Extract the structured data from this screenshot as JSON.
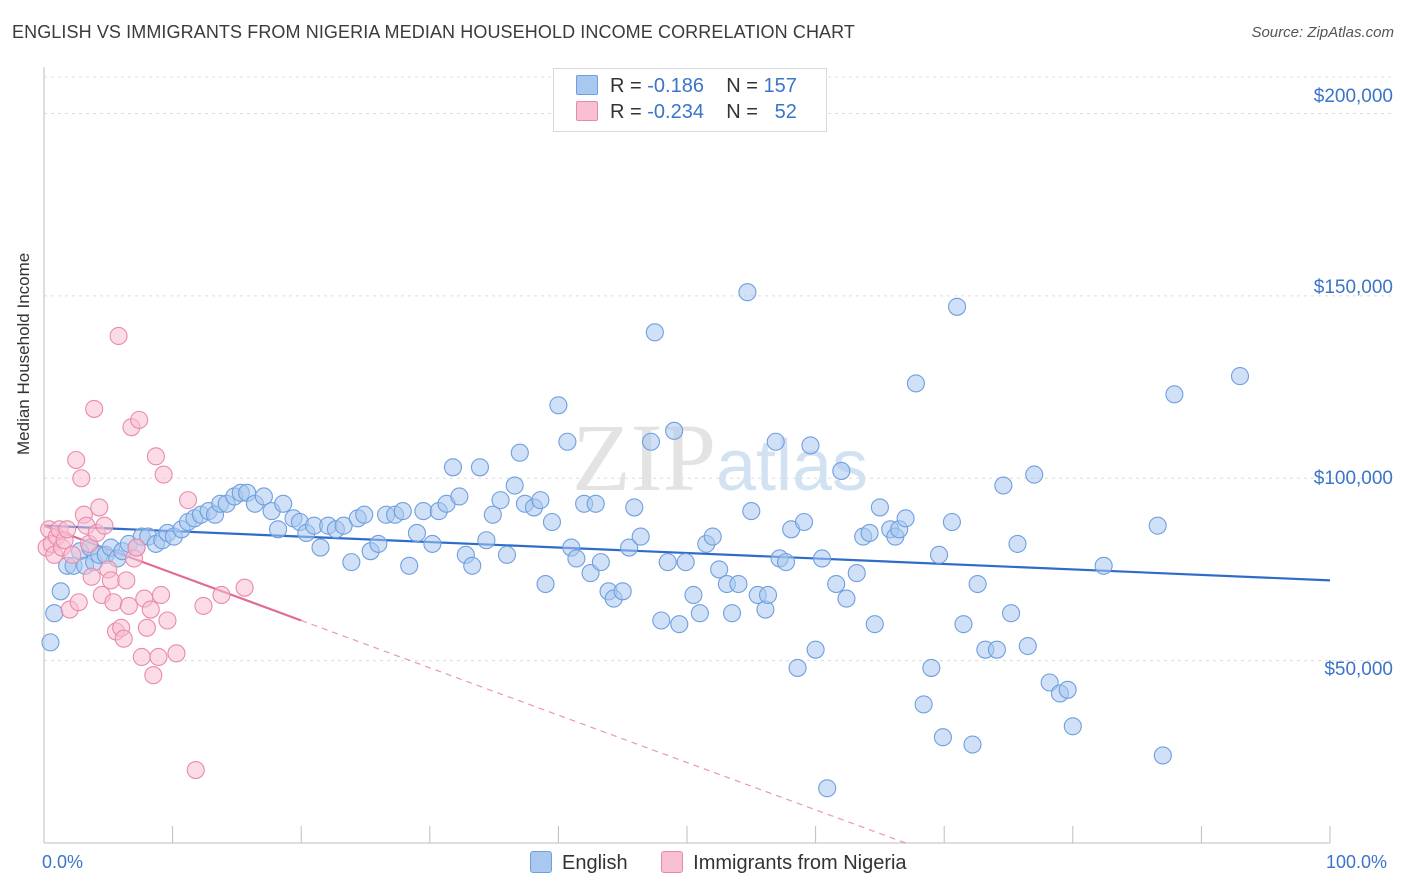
{
  "title": "ENGLISH VS IMMIGRANTS FROM NIGERIA MEDIAN HOUSEHOLD INCOME CORRELATION CHART",
  "source": "Source: ZipAtlas.com",
  "watermark": "ZIPatlas",
  "legend_top": [
    {
      "label_r": "R = ",
      "r": "-0.186",
      "label_n": "N = ",
      "n": "157",
      "color": "#a9c8f0",
      "border": "#6f9fdf"
    },
    {
      "label_r": "R = ",
      "r": "-0.234",
      "label_n": "N = ",
      "n": "52",
      "color": "#f7bfd1",
      "border": "#ea8aab"
    }
  ],
  "legend_bottom": [
    {
      "label": "English",
      "color": "#a9c8f0",
      "border": "#6f9fdf"
    },
    {
      "label": "Immigrants from Nigeria",
      "color": "#f7bfd1",
      "border": "#ea8aab"
    }
  ],
  "chart_data": {
    "type": "scatter",
    "title": "ENGLISH VS IMMIGRANTS FROM NIGERIA MEDIAN HOUSEHOLD INCOME CORRELATION CHART",
    "xlabel": "",
    "ylabel": "Median Household Income",
    "x_tick_labels": [
      "0.0%",
      "100.0%"
    ],
    "y_tick_labels": [
      "$200,000",
      "$150,000",
      "$100,000",
      "$50,000"
    ],
    "y_ticks": [
      200000,
      150000,
      100000,
      50000
    ],
    "xlim": [
      0,
      100
    ],
    "ylim": [
      0,
      210000
    ],
    "grid": true,
    "legend_position": "top-center",
    "series": [
      {
        "name": "English",
        "color": "#6f9fdf",
        "fill": "#a9c8f0",
        "trend": {
          "x": [
            0,
            100
          ],
          "y": [
            87000,
            72000
          ],
          "color": "#2f6cc9"
        },
        "points": [
          [
            0.5,
            55
          ],
          [
            0.8,
            63
          ],
          [
            1.3,
            69
          ],
          [
            1.8,
            76
          ],
          [
            2.3,
            76
          ],
          [
            2.8,
            80
          ],
          [
            3.2,
            76
          ],
          [
            3.6,
            81
          ],
          [
            3.9,
            77
          ],
          [
            4.3,
            79
          ],
          [
            4.8,
            79
          ],
          [
            5.2,
            81
          ],
          [
            5.7,
            78
          ],
          [
            6.1,
            80
          ],
          [
            6.6,
            82
          ],
          [
            7.2,
            81
          ],
          [
            7.6,
            84
          ],
          [
            8.1,
            84
          ],
          [
            8.7,
            82
          ],
          [
            9.2,
            83
          ],
          [
            9.6,
            85
          ],
          [
            10.1,
            84
          ],
          [
            10.7,
            86
          ],
          [
            11.2,
            88
          ],
          [
            11.7,
            89
          ],
          [
            12.2,
            90
          ],
          [
            12.8,
            91
          ],
          [
            13.3,
            90
          ],
          [
            13.7,
            93
          ],
          [
            14.2,
            93
          ],
          [
            14.8,
            95
          ],
          [
            15.3,
            96
          ],
          [
            15.8,
            96
          ],
          [
            16.4,
            93
          ],
          [
            17.1,
            95
          ],
          [
            17.7,
            91
          ],
          [
            18.2,
            86
          ],
          [
            18.6,
            93
          ],
          [
            19.4,
            89
          ],
          [
            19.9,
            88
          ],
          [
            20.4,
            85
          ],
          [
            21.0,
            87
          ],
          [
            21.5,
            81
          ],
          [
            22.1,
            87
          ],
          [
            22.7,
            86
          ],
          [
            23.3,
            87
          ],
          [
            23.9,
            77
          ],
          [
            24.4,
            89
          ],
          [
            24.9,
            90
          ],
          [
            25.4,
            80
          ],
          [
            26.0,
            82
          ],
          [
            26.6,
            90
          ],
          [
            27.3,
            90
          ],
          [
            27.9,
            91
          ],
          [
            28.4,
            76
          ],
          [
            29.0,
            85
          ],
          [
            29.5,
            91
          ],
          [
            30.2,
            82
          ],
          [
            30.7,
            91
          ],
          [
            31.3,
            93
          ],
          [
            31.8,
            103
          ],
          [
            32.3,
            95
          ],
          [
            32.8,
            79
          ],
          [
            33.3,
            76
          ],
          [
            33.9,
            103
          ],
          [
            34.4,
            83
          ],
          [
            34.9,
            90
          ],
          [
            35.5,
            94
          ],
          [
            36.0,
            79
          ],
          [
            36.6,
            98
          ],
          [
            37.0,
            107
          ],
          [
            37.4,
            93
          ],
          [
            38.1,
            92
          ],
          [
            38.6,
            94
          ],
          [
            39.0,
            71
          ],
          [
            39.5,
            88
          ],
          [
            40.0,
            120
          ],
          [
            40.7,
            110
          ],
          [
            41.0,
            81
          ],
          [
            41.4,
            78
          ],
          [
            42.0,
            93
          ],
          [
            42.5,
            74
          ],
          [
            42.9,
            93
          ],
          [
            43.3,
            77
          ],
          [
            43.9,
            69
          ],
          [
            44.3,
            67
          ],
          [
            45.0,
            69
          ],
          [
            45.5,
            81
          ],
          [
            45.9,
            92
          ],
          [
            46.4,
            84
          ],
          [
            47.2,
            110
          ],
          [
            47.5,
            140
          ],
          [
            48.0,
            61
          ],
          [
            48.5,
            77
          ],
          [
            49.0,
            113
          ],
          [
            49.4,
            60
          ],
          [
            49.9,
            77
          ],
          [
            50.5,
            68
          ],
          [
            51.0,
            63
          ],
          [
            51.5,
            82
          ],
          [
            52.0,
            84
          ],
          [
            52.5,
            75
          ],
          [
            53.1,
            71
          ],
          [
            53.5,
            63
          ],
          [
            54.0,
            71
          ],
          [
            54.7,
            151
          ],
          [
            55.0,
            91
          ],
          [
            55.5,
            68
          ],
          [
            56.1,
            64
          ],
          [
            56.3,
            68
          ],
          [
            56.9,
            110
          ],
          [
            57.2,
            78
          ],
          [
            57.7,
            77
          ],
          [
            58.1,
            86
          ],
          [
            58.6,
            48
          ],
          [
            59.1,
            88
          ],
          [
            59.6,
            109
          ],
          [
            60.0,
            53
          ],
          [
            60.5,
            78
          ],
          [
            60.9,
            15
          ],
          [
            61.6,
            71
          ],
          [
            62.0,
            102
          ],
          [
            62.4,
            67
          ],
          [
            63.2,
            74
          ],
          [
            63.7,
            84
          ],
          [
            64.2,
            85
          ],
          [
            64.6,
            60
          ],
          [
            65.0,
            92
          ],
          [
            65.8,
            86
          ],
          [
            66.2,
            84
          ],
          [
            66.5,
            86
          ],
          [
            67.0,
            89
          ],
          [
            67.8,
            126
          ],
          [
            68.4,
            38
          ],
          [
            69.0,
            48
          ],
          [
            69.6,
            79
          ],
          [
            69.9,
            29
          ],
          [
            70.6,
            88
          ],
          [
            71.0,
            147
          ],
          [
            71.5,
            60
          ],
          [
            72.2,
            27
          ],
          [
            72.6,
            71
          ],
          [
            73.2,
            53
          ],
          [
            74.1,
            53
          ],
          [
            74.6,
            98
          ],
          [
            75.2,
            63
          ],
          [
            75.7,
            82
          ],
          [
            76.5,
            54
          ],
          [
            77.0,
            101
          ],
          [
            78.2,
            44
          ],
          [
            79.0,
            41
          ],
          [
            79.6,
            42
          ],
          [
            80.0,
            32
          ],
          [
            82.4,
            76
          ],
          [
            86.6,
            87
          ],
          [
            87.0,
            24
          ],
          [
            87.9,
            123
          ],
          [
            93.0,
            128
          ]
        ]
      },
      {
        "name": "Immigrants from Nigeria",
        "color": "#ea8aab",
        "fill": "#f7bfd1",
        "trend": {
          "x": [
            0,
            20
          ],
          "y": [
            87000,
            61000
          ],
          "dashed_to": [
            67,
            0
          ],
          "color": "#e16b98"
        },
        "points": [
          [
            0.2,
            81
          ],
          [
            0.4,
            86
          ],
          [
            0.6,
            82
          ],
          [
            0.8,
            79
          ],
          [
            1.0,
            84
          ],
          [
            1.2,
            86
          ],
          [
            1.4,
            81
          ],
          [
            1.6,
            83
          ],
          [
            1.8,
            86
          ],
          [
            2.0,
            64
          ],
          [
            2.2,
            79
          ],
          [
            2.5,
            105
          ],
          [
            2.7,
            66
          ],
          [
            2.9,
            100
          ],
          [
            3.1,
            90
          ],
          [
            3.3,
            87
          ],
          [
            3.5,
            82
          ],
          [
            3.7,
            73
          ],
          [
            3.9,
            119
          ],
          [
            4.1,
            85
          ],
          [
            4.3,
            92
          ],
          [
            4.5,
            68
          ],
          [
            4.7,
            87
          ],
          [
            5.0,
            75
          ],
          [
            5.2,
            72
          ],
          [
            5.4,
            66
          ],
          [
            5.6,
            58
          ],
          [
            5.8,
            139
          ],
          [
            6.0,
            59
          ],
          [
            6.2,
            56
          ],
          [
            6.4,
            72
          ],
          [
            6.6,
            65
          ],
          [
            6.8,
            114
          ],
          [
            7.0,
            78
          ],
          [
            7.2,
            81
          ],
          [
            7.4,
            116
          ],
          [
            7.6,
            51
          ],
          [
            7.8,
            67
          ],
          [
            8.0,
            59
          ],
          [
            8.3,
            64
          ],
          [
            8.5,
            46
          ],
          [
            8.7,
            106
          ],
          [
            8.9,
            51
          ],
          [
            9.1,
            68
          ],
          [
            9.3,
            101
          ],
          [
            9.6,
            61
          ],
          [
            10.3,
            52
          ],
          [
            11.2,
            94
          ],
          [
            11.8,
            20
          ],
          [
            12.4,
            65
          ],
          [
            13.8,
            68
          ],
          [
            15.6,
            70
          ]
        ]
      }
    ]
  }
}
